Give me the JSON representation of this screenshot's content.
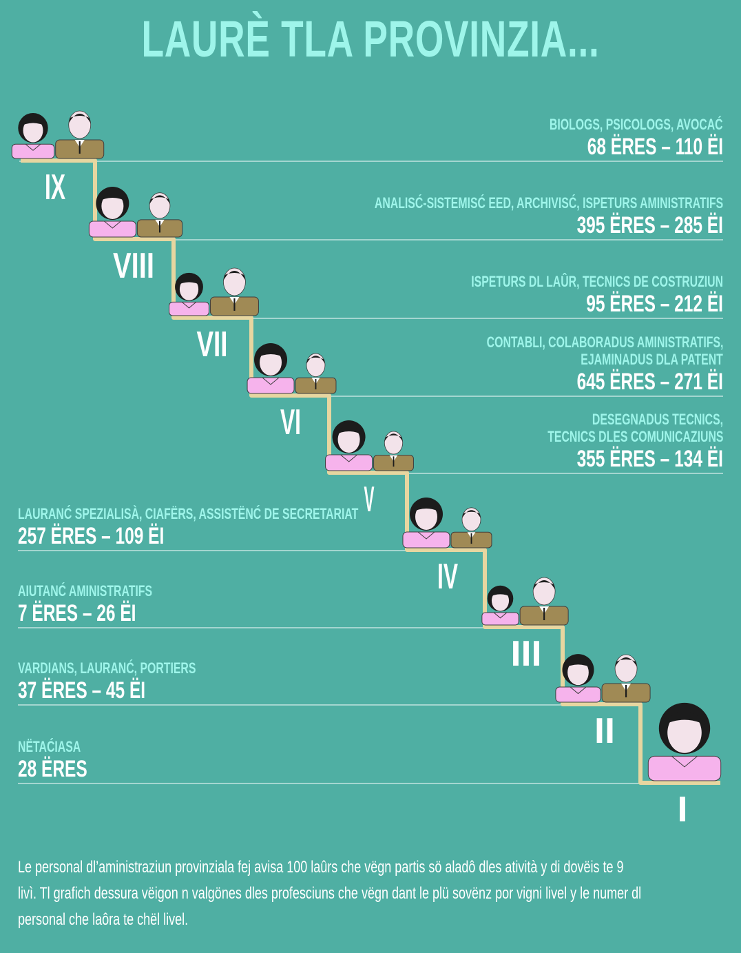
{
  "title": "LAURÈ TLA PROVINZIA...",
  "levels": [
    {
      "numeral": "IX",
      "occ_lines": [
        "BIOLOGS, PSICOLOGS, AVOCAĆ"
      ],
      "counts": "68 ËRES – 110 ËI",
      "women": 68,
      "men": 110
    },
    {
      "numeral": "VIII",
      "occ_lines": [
        "ANALISĆ-SISTEMISĆ EED, ARCHIVISĆ, ISPETURS AMINISTRATIFS"
      ],
      "counts": "395 ËRES – 285 ËI",
      "women": 395,
      "men": 285
    },
    {
      "numeral": "VII",
      "occ_lines": [
        "ISPETURS DL LAÛR, TECNICS DE COSTRUZIUN"
      ],
      "counts": "95 ËRES – 212 ËI",
      "women": 95,
      "men": 212
    },
    {
      "numeral": "VI",
      "occ_lines": [
        "CONTABLI, COLABORADUS AMINISTRATIFS,",
        "EJAMINADUS DLA PATENT"
      ],
      "counts": "645 ËRES – 271 ËI",
      "women": 645,
      "men": 271
    },
    {
      "numeral": "V",
      "occ_lines": [
        "DESEGNADUS TECNICS,",
        "TECNICS DLES COMUNICAZIUNS"
      ],
      "counts": "355 ËRES – 134 ËI",
      "women": 355,
      "men": 134
    },
    {
      "numeral": "IV",
      "occ_lines": [
        "LAURANĆ SPEZIALISÀ, CIAFËRS, ASSISTËNĆ DE SECRETARIAT"
      ],
      "counts": "257 ËRES – 109 ËI",
      "women": 257,
      "men": 109
    },
    {
      "numeral": "III",
      "occ_lines": [
        "AIUTANĆ AMINISTRATIFS"
      ],
      "counts": "7 ËRES – 26 ËI",
      "women": 7,
      "men": 26
    },
    {
      "numeral": "II",
      "occ_lines": [
        "VARDIANS, LAURANĆ, PORTIERS"
      ],
      "counts": "37 ËRES – 45 ËI",
      "women": 37,
      "men": 45
    },
    {
      "numeral": "I",
      "occ_lines": [
        "NËTAĆIASA"
      ],
      "counts": "28 ËRES",
      "women": 28,
      "men": 0
    }
  ],
  "note": "Le personal dl’aministraziun provinziala fej avisa 100 laûrs che vëgn partis sö aladô dles atività y di dovëis te 9 livì. Tl grafich dessura vëigon n valgönes dles profesciuns che vëgn dant le plü sovënz por vigni livel y le numer dl personal che laôra te chël livel.",
  "note_lines": [
    "Le personal dl’aministraziun provinziala fej avisa 100 laûrs che vëgn partis sö aladô dles atività y di dovëis te 9",
    "livì. Tl grafich dessura vëigon n valgönes dles profesciuns che vëgn dant le plü sovënz por vigni livel y le numer dl",
    "personal che laôra te chël livel."
  ],
  "colors": {
    "background": "#4fafa3",
    "title": "#9ef5ea",
    "occupation_text": "#9ef5ea",
    "stair": "#e7d6a0",
    "woman_shirt": "#f6b3ec",
    "man_suit": "#a08a55",
    "skin": "#f3e3ea",
    "hair": "#1c1c1c"
  }
}
